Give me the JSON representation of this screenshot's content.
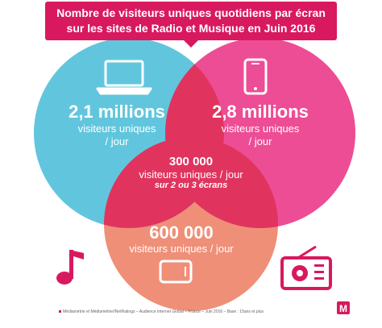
{
  "title": {
    "line1": "Nombre de visiteurs uniques quotidiens par écran",
    "line2": "sur les sites de Radio et Musique en Juin 2016"
  },
  "sets": {
    "computer": {
      "value": "2,1 millions",
      "label1": "visiteurs uniques",
      "label2": "/ jour",
      "color": "#61c6dd",
      "icon": "laptop-icon"
    },
    "mobile": {
      "value": "2,8 millions",
      "label1": "visiteurs uniques",
      "label2": "/ jour",
      "color": "#ed4d94",
      "icon": "smartphone-icon"
    },
    "tablet": {
      "value": "600 000",
      "label1": "visiteurs uniques / jour",
      "color": "#ef8f78",
      "icon": "tablet-icon"
    },
    "overlap": {
      "value": "300 000",
      "label1": "visiteurs uniques / jour",
      "label2": "sur 2 ou 3 écrans",
      "color": "#e0345f"
    }
  },
  "decor": {
    "music_note_icon": "music-note-icon",
    "radio_icon": "radio-icon",
    "accent": "#d8195f"
  },
  "footnote": "Médiamétrie et Médiamétrie//NetRatings – Audience Internet Global – France – Juin 2016 – Base : 15ans et plus",
  "logo": "M"
}
